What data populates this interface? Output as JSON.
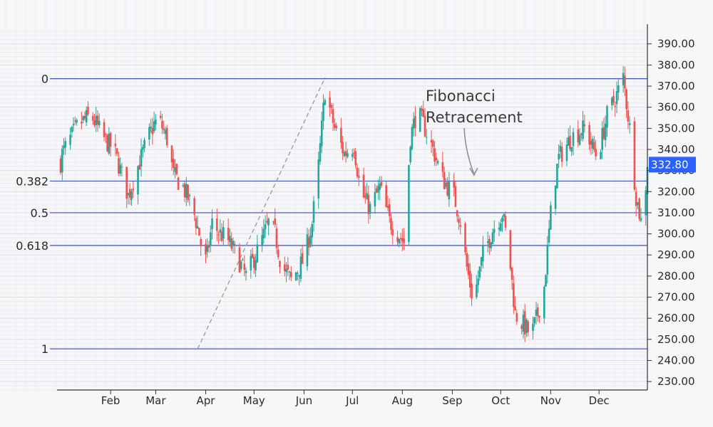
{
  "chart_data": {
    "type": "candlestick",
    "title": "",
    "xlabel": "",
    "ylabel": "",
    "ylim": [
      226,
      398
    ],
    "y_ticks": [
      230,
      240,
      250,
      260,
      270,
      280,
      290,
      300,
      310,
      320,
      330,
      340,
      350,
      360,
      370,
      380,
      390
    ],
    "x_ticks": [
      "Feb",
      "Mar",
      "Apr",
      "May",
      "Jun",
      "Jul",
      "Aug",
      "Sep",
      "Oct",
      "Nov",
      "Dec"
    ],
    "current_price": "332.80",
    "grid": true,
    "colors": {
      "up": "#26a69a",
      "down": "#ef5350",
      "fib_line": "#3f51b5",
      "price_badge": "#2962ff",
      "trend_line": "#9e9e9e"
    },
    "fibonacci_levels": [
      {
        "label": "0",
        "price": 373.5
      },
      {
        "label": "0.382",
        "price": 325
      },
      {
        "label": "0.5",
        "price": 310
      },
      {
        "label": "0.618",
        "price": 294.5
      },
      {
        "label": "1",
        "price": 245.5
      }
    ],
    "trend_line": {
      "from": {
        "date": "Mar 27",
        "price": 245.5
      },
      "to": {
        "date": "Jun 14",
        "price": 374
      }
    },
    "annotation": {
      "line1": "Fibonacci",
      "line2": "Retracement",
      "arrow_label_date": "Sep 14"
    },
    "keypoints": [
      [
        "Jan 2",
        338
      ],
      [
        "Jan 12",
        352
      ],
      [
        "Jan 20",
        356
      ],
      [
        "Jan 28",
        345
      ],
      [
        "Feb 3",
        340
      ],
      [
        "Feb 8",
        328
      ],
      [
        "Feb 12",
        318
      ],
      [
        "Feb 18",
        332
      ],
      [
        "Feb 24",
        345
      ],
      [
        "Feb 28",
        352
      ],
      [
        "Mar 3",
        354
      ],
      [
        "Mar 8",
        345
      ],
      [
        "Mar 12",
        328
      ],
      [
        "Mar 18",
        322
      ],
      [
        "Mar 24",
        312
      ],
      [
        "Mar 28",
        300
      ],
      [
        "Mar 31",
        285
      ],
      [
        "Apr 2",
        290
      ],
      [
        "Apr 5",
        305
      ],
      [
        "Apr 10",
        300
      ],
      [
        "Apr 14",
        298
      ],
      [
        "Apr 20",
        290
      ],
      [
        "Apr 26",
        280
      ],
      [
        "May 2",
        290
      ],
      [
        "May 10",
        305
      ],
      [
        "May 14",
        300
      ],
      [
        "May 18",
        285
      ],
      [
        "May 24",
        278
      ],
      [
        "Jun 1",
        288
      ],
      [
        "Jun 6",
        305
      ],
      [
        "Jun 10",
        332
      ],
      [
        "Jun 14",
        368
      ],
      [
        "Jun 20",
        350
      ],
      [
        "Jun 26",
        338
      ],
      [
        "Jul 2",
        342
      ],
      [
        "Jul 6",
        320
      ],
      [
        "Jul 12",
        312
      ],
      [
        "Jul 18",
        322
      ],
      [
        "Jul 24",
        306
      ],
      [
        "Aug 2",
        296
      ],
      [
        "Aug 6",
        346
      ],
      [
        "Aug 10",
        358
      ],
      [
        "Aug 14",
        352
      ],
      [
        "Aug 20",
        340
      ],
      [
        "Aug 26",
        326
      ],
      [
        "Sep 2",
        318
      ],
      [
        "Sep 6",
        306
      ],
      [
        "Sep 10",
        284
      ],
      [
        "Sep 14",
        268
      ],
      [
        "Sep 20",
        290
      ],
      [
        "Sep 26",
        302
      ],
      [
        "Oct 2",
        310
      ],
      [
        "Oct 6",
        292
      ],
      [
        "Oct 10",
        262
      ],
      [
        "Oct 16",
        256
      ],
      [
        "Oct 20",
        252
      ],
      [
        "Oct 24",
        262
      ],
      [
        "Oct 28",
        275
      ],
      [
        "Nov 2",
        318
      ],
      [
        "Nov 6",
        336
      ],
      [
        "Nov 14",
        346
      ],
      [
        "Nov 22",
        350
      ],
      [
        "Nov 30",
        336
      ],
      [
        "Dec 6",
        356
      ],
      [
        "Dec 12",
        366
      ],
      [
        "Dec 16",
        374
      ],
      [
        "Dec 20",
        350
      ],
      [
        "Dec 24",
        318
      ],
      [
        "Dec 28",
        302
      ],
      [
        "Dec 31",
        334
      ]
    ]
  }
}
